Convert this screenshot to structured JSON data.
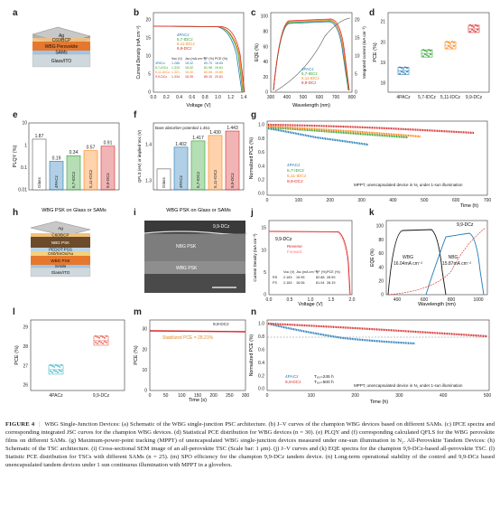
{
  "figure": {
    "panel_labels": [
      "a",
      "b",
      "c",
      "d",
      "e",
      "f",
      "g",
      "h",
      "i",
      "j",
      "k",
      "l",
      "m",
      "n"
    ],
    "a": {
      "layers": [
        "Ag",
        "C60/BCP",
        "WBG Perovskite",
        "SAMs",
        "Glass/ITO"
      ]
    },
    "b": {
      "ylabel": "Current Density (mA cm⁻²)",
      "xlabel": "Voltage (V)",
      "xticks": [
        "0.0",
        "0.2",
        "0.4",
        "0.6",
        "0.8",
        "1.0",
        "1.2",
        "1.4"
      ],
      "yticks": [
        "0",
        "5",
        "10",
        "15",
        "20"
      ],
      "legend": [
        "4PACz",
        "5,7-IDCz",
        "5,11-IDCz",
        "9,9-DCz"
      ],
      "table_header": [
        "Voc (V)",
        "Jsc (mA cm⁻²)",
        "FF (%)",
        "PCE (%)"
      ],
      "table_rows": [
        [
          "4PACz",
          "1.286",
          "18.32",
          "80.75",
          "18.65"
        ],
        [
          "5,7-IDCz",
          "1.310",
          "18.32",
          "81.98",
          "19.61"
        ],
        [
          "5,11-IDCz",
          "1.321",
          "18.30",
          "82.08",
          "19.89"
        ],
        [
          "9,9-DCz",
          "1.334",
          "18.35",
          "85.15",
          "20.81"
        ]
      ]
    },
    "c": {
      "ylabel": "EQE (%)",
      "y2label": "Integrated current (mA cm⁻²)",
      "xlabel": "Wavelength (nm)",
      "xticks": [
        "300",
        "400",
        "500",
        "600",
        "700",
        "800"
      ],
      "yticks": [
        "0",
        "20",
        "40",
        "60",
        "80",
        "100"
      ],
      "y2ticks": [
        "0",
        "5",
        "10",
        "15",
        "20"
      ],
      "legend": [
        "4PACz",
        "5,7-IDCz",
        "5,11-IDCz",
        "9,9-DCz"
      ]
    },
    "d": {
      "ylabel": "PCE (%)",
      "yticks": [
        "18",
        "19",
        "20",
        "21"
      ],
      "categories": [
        "4PACz",
        "5,7-IDCz",
        "5,11-IDCz",
        "9,9-DCz"
      ]
    },
    "e": {
      "ylabel": "PLQY (%)",
      "xlabel": "WBG PSK on Glass or SAMs",
      "categories": [
        "Glass",
        "4PACz",
        "5,7-IDCz",
        "5,11-IDCz",
        "9,9-DCz"
      ],
      "values": [
        1.87,
        0.19,
        0.34,
        0.57,
        0.91
      ],
      "labels": [
        "1.87",
        "0.19",
        "0.34",
        "0.57",
        "0.91"
      ],
      "yticks": [
        "0.01",
        "0.1",
        "1",
        "10"
      ]
    },
    "f": {
      "ylabel": "QFLS (eV) or implied Voc (V)",
      "xlabel": "WBG PSK on Glass or SAMs",
      "note": "Bare absorber potential 1.451",
      "categories": [
        "Glass",
        "4PACz",
        "5,7-IDCz",
        "5,11-IDCz",
        "9,9-DCz"
      ],
      "values": [
        1.35,
        1.402,
        1.417,
        1.43,
        1.443
      ],
      "labels": [
        "",
        "1.402",
        "1.417",
        "1.430",
        "1.443"
      ],
      "yticks": [
        "1.3",
        "1.4"
      ]
    },
    "g": {
      "ylabel": "Normalized PCE (%)",
      "xlabel": "Time (h)",
      "xticks": [
        "0",
        "100",
        "200",
        "300",
        "400",
        "500",
        "600",
        "700"
      ],
      "yticks": [
        "0.0",
        "0.2",
        "0.4",
        "0.6",
        "0.8",
        "1.0"
      ],
      "legend": [
        "4PACz",
        "5,7-IDCz",
        "5,11-IDCz",
        "9,9-DCz"
      ],
      "note": "MPPT, unencapsulated device in N₂ under 1-sun illumination"
    },
    "h": {
      "layers": [
        "Ag",
        "C60/BCP",
        "NBG PSK",
        "PEDOT:PSS",
        "C60/SnOx/Au",
        "WBG PSK",
        "SAMs",
        "Glass/ITO"
      ]
    },
    "i": {
      "labels": [
        "9,9-DCz",
        "NBG PSK",
        "WBG PSK"
      ]
    },
    "j": {
      "ylabel": "Current Density (mA cm⁻²)",
      "xlabel": "Voltage (V)",
      "title": "9,9-DCz",
      "xticks": [
        "0.0",
        "0.5",
        "1.0",
        "1.5",
        "2.0"
      ],
      "yticks": [
        "0",
        "5",
        "10",
        "15"
      ],
      "legend": [
        "Reverse",
        "Forward"
      ],
      "table_header": [
        "Voc (V)",
        "Jsc (mA cm⁻²)",
        "FF (%)",
        "PCE (%)"
      ],
      "table_rows": [
        [
          "RS",
          "2.163",
          "15.95",
          "82.88",
          "28.59"
        ],
        [
          "FS",
          "2.163",
          "16.06",
          "81.04",
          "28.19"
        ]
      ]
    },
    "k": {
      "ylabel": "EQE (%)",
      "xlabel": "Wavelength (nm)",
      "title": "9,9-DCz",
      "xticks": [
        "400",
        "600",
        "800",
        "1000"
      ],
      "yticks": [
        "0",
        "20",
        "40",
        "60",
        "80",
        "100"
      ],
      "wbg": [
        "WBG",
        "16.04mA cm⁻²"
      ],
      "nbg": [
        "NBG",
        "15.87mA cm⁻²"
      ]
    },
    "l": {
      "ylabel": "PCE (%)",
      "categories": [
        "4PACz",
        "9,9-DCz"
      ],
      "yticks": [
        "26",
        "27",
        "28",
        "29"
      ]
    },
    "m": {
      "ylabel": "PCE (%)",
      "xlabel": "Time (s)",
      "legend": "9,9-DCz",
      "stab": "Stabilized PCE = 28.21%",
      "xticks": [
        "0",
        "50",
        "100",
        "150",
        "200",
        "250",
        "300"
      ],
      "yticks": [
        "0",
        "10",
        "20",
        "30"
      ]
    },
    "n": {
      "ylabel": "Normalized PCE (%)",
      "xlabel": "Time (h)",
      "xticks": [
        "0",
        "100",
        "200",
        "300",
        "400",
        "500"
      ],
      "yticks": [
        "0.0",
        "0.2",
        "0.4",
        "0.6",
        "0.8",
        "1.0"
      ],
      "legend": [
        "4PACz",
        "9,9-DCz"
      ],
      "t80": [
        "T₈₀=245 h",
        "T₈₀=500 h"
      ],
      "note": "MPPT, unencapsulated device in N₂ under 1-sun illumination"
    }
  },
  "caption": {
    "label": "FIGURE 4",
    "text": "WBG Single-Junction Devices: (a) Schematic of the WBG single-junction PSC architecture. (b) J–V curves of the champion WBG devices based on different SAMs. (c) IPCE spectra and corresponding integrated JSC curves for the champion WBG devices. (d) Statistical PCE distribution for WBG devices (n = 30). (e) PLQY and (f) corresponding calculated QFLS for the WBG perovskite films on different SAMs. (g) Maximum-power-point tracking (MPPT) of unencapsulated WBG single-junction devices measured under one-sun illumination in N₂. All-Perovskite Tandem Devices: (h) Schematic of the TSC architecture. (i) Cross-sectional SEM image of an all-perovskite TSC (Scale bar: 1 μm). (j) J–V curves and (k) EQE spectra for the champion 9,9-DCz-based all-perovskite TSC. (l) Statistic PCE distribution for TSCs with different SAMs (n = 25). (m) SPO efficiency for the champion 9,9-DCz tandem device. (n) Long-term operational stability of the control and 9,9-DCz based unencapsulated tandem devices under 1 sun continuous illumination with MPPT in a glovebox."
  },
  "colors": {
    "c1": "#1f77b4",
    "c2": "#2ca02c",
    "c3": "#ff7f0e",
    "c4": "#d62728",
    "teal": "#3fb6c8"
  }
}
